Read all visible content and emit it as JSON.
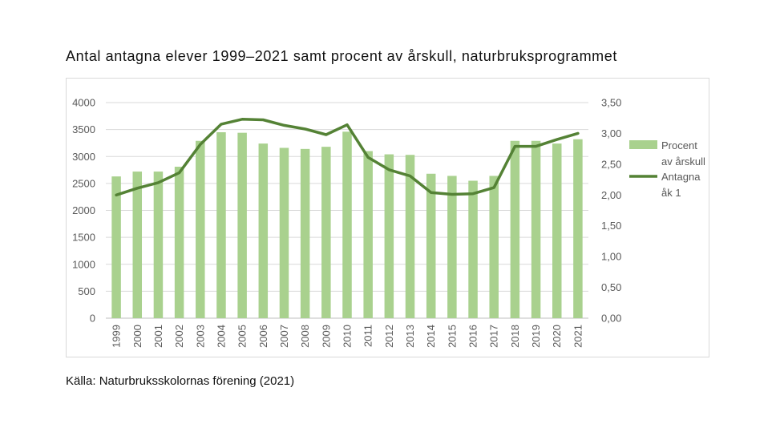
{
  "title": "Antal antagna elever 1999–2021 samt procent av årskull, naturbruksprogrammet",
  "source": "Källa: Naturbruksskolornas förening (2021)",
  "chart_data": {
    "type": "bar",
    "categories": [
      "1999",
      "2000",
      "2001",
      "2002",
      "2003",
      "2004",
      "2005",
      "2006",
      "2007",
      "2008",
      "2009",
      "2010",
      "2011",
      "2012",
      "2013",
      "2014",
      "2015",
      "2016",
      "2017",
      "2018",
      "2019",
      "2020",
      "2021"
    ],
    "series": [
      {
        "name": "Procent av årskull",
        "type": "bar",
        "axis": "left",
        "color": "#a9d18e",
        "values": [
          2630,
          2720,
          2720,
          2810,
          3290,
          3450,
          3440,
          3240,
          3160,
          3140,
          3180,
          3460,
          3100,
          3040,
          3030,
          2680,
          2640,
          2550,
          2640,
          3290,
          3290,
          3240,
          3320
        ]
      },
      {
        "name": "Antagna åk 1",
        "type": "line",
        "axis": "right",
        "color": "#548235",
        "values": [
          2.0,
          2.11,
          2.2,
          2.36,
          2.82,
          3.15,
          3.23,
          3.22,
          3.13,
          3.07,
          2.98,
          3.14,
          2.61,
          2.41,
          2.31,
          2.04,
          2.01,
          2.02,
          2.12,
          2.79,
          2.79,
          2.9,
          3.0
        ]
      }
    ],
    "y_left": {
      "min": 0,
      "max": 4000,
      "step": 500,
      "ticks": [
        "0",
        "500",
        "1000",
        "1500",
        "2000",
        "2500",
        "3000",
        "3500",
        "4000"
      ]
    },
    "y_right": {
      "min": 0,
      "max": 3.5,
      "step": 0.5,
      "ticks": [
        "0,00",
        "0,50",
        "1,00",
        "1,50",
        "2,00",
        "2,50",
        "3,00",
        "3,50"
      ]
    },
    "grid": true,
    "legend": {
      "placement": "right",
      "entries": [
        {
          "lines": [
            "Procent",
            "av årskull"
          ]
        },
        {
          "lines": [
            "Antagna",
            "åk 1"
          ]
        }
      ]
    }
  }
}
